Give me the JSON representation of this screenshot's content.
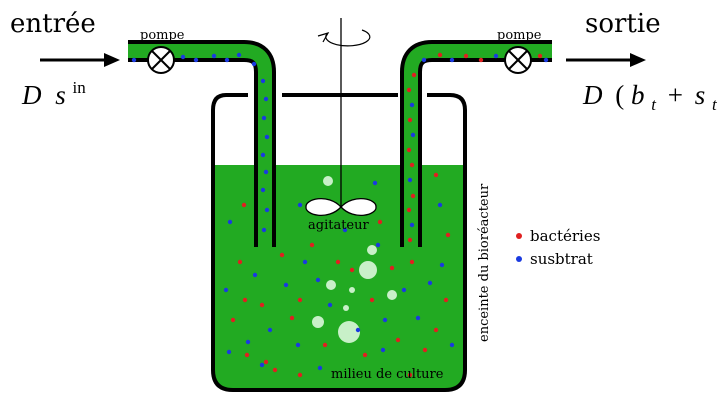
{
  "labels": {
    "inlet": "entrée",
    "outlet": "sortie",
    "pump_left": "pompe",
    "pump_right": "pompe",
    "agitator": "agitateur",
    "medium": "milieu de culture",
    "enclosure": "enceinte du bioréacteur"
  },
  "formulas": {
    "in_D": "D",
    "in_s": "s",
    "in_sup": "in",
    "out_D": "D",
    "out_open": "(",
    "out_b": "b",
    "out_sub1": "t",
    "out_plus": "+",
    "out_s": "s",
    "out_sub2": "t",
    "out_close": ")"
  },
  "legend": {
    "bacteria": "bactéries",
    "substrate": "susbtrat"
  },
  "colors": {
    "medium": "#22aa22",
    "bacteria": "#e02020",
    "substrate": "#1a3ae0",
    "bubble": "#c8f0c8",
    "outline": "#000000"
  }
}
